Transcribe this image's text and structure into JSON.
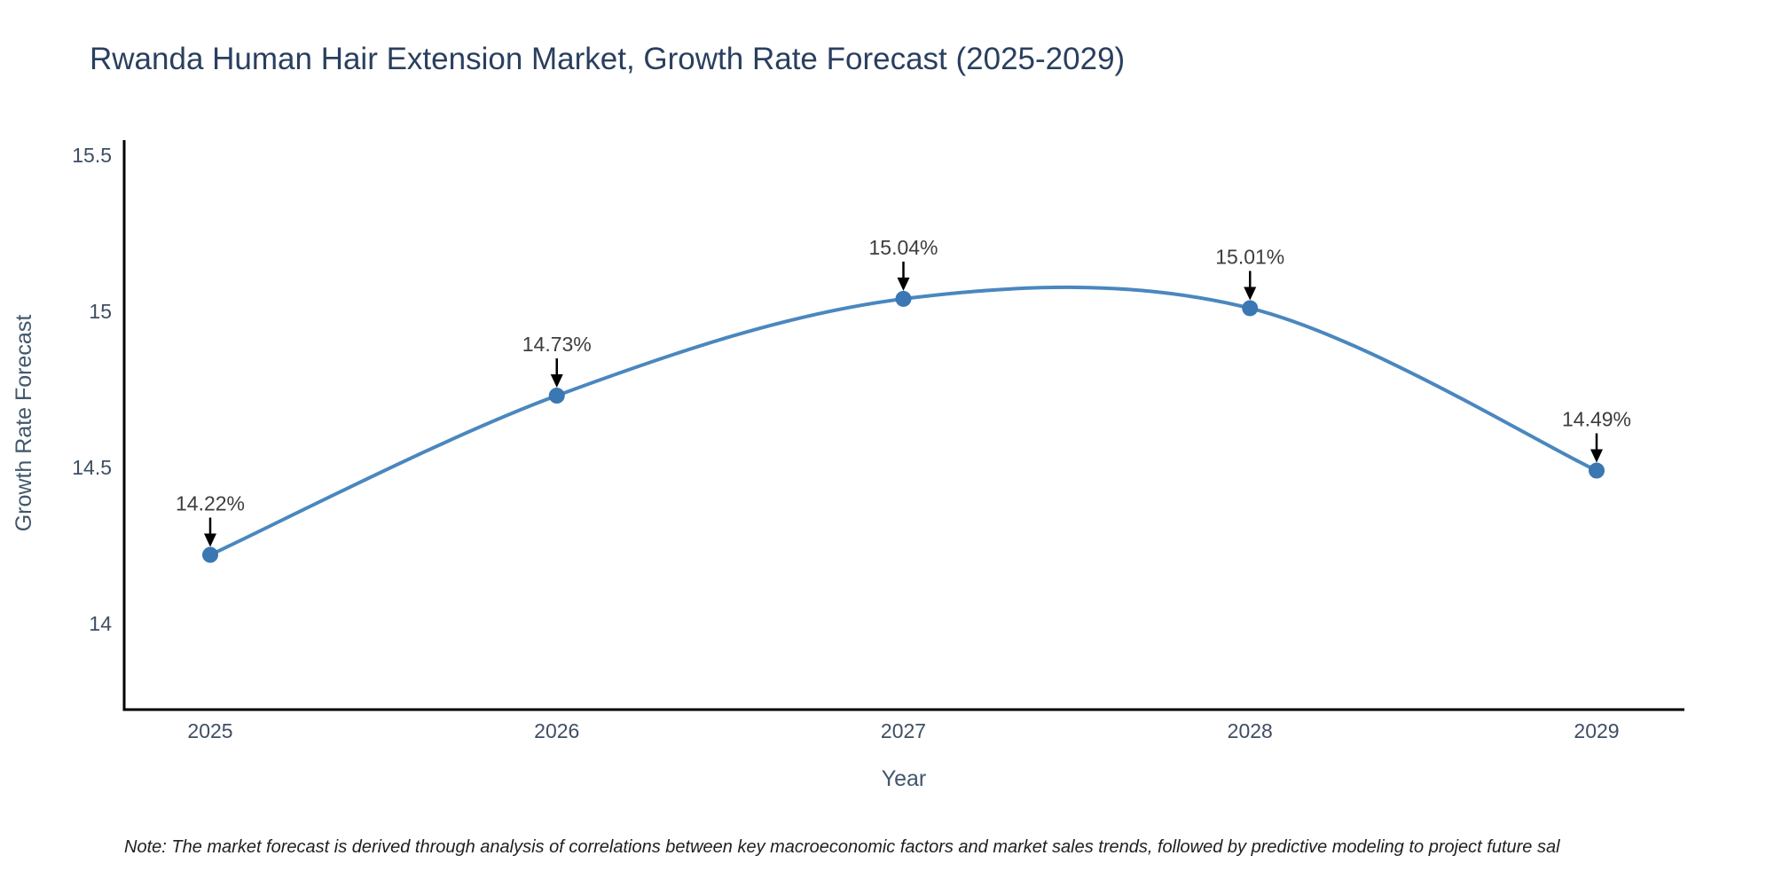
{
  "title": "Rwanda Human Hair Extension Market, Growth Rate Forecast (2025-2029)",
  "note": "Note: The market forecast is derived through analysis of correlations between key macroeconomic factors and market sales trends, followed by predictive modeling to project future sal",
  "chart_data": {
    "type": "line",
    "line_shape": "spline",
    "title": "Rwanda Human Hair Extension Market, Growth Rate Forecast (2025-2029)",
    "xlabel": "Year",
    "ylabel": "Growth Rate Forecast",
    "categories": [
      "2025",
      "2026",
      "2027",
      "2028",
      "2029"
    ],
    "values": [
      14.22,
      14.73,
      15.04,
      15.01,
      14.49
    ],
    "point_labels": [
      "14.22%",
      "14.73%",
      "15.04%",
      "15.01%",
      "14.49%"
    ],
    "ytick_values": [
      15.5,
      15,
      14.5,
      14
    ],
    "ytick_labels": [
      "15.5",
      "15",
      "14.5",
      "14"
    ],
    "ylim": [
      13.72,
      15.55
    ],
    "grid": false,
    "legend": false,
    "annotations_arrows": true,
    "colors": {
      "line": "#4a87be",
      "marker": "#3a77b3",
      "arrow": "#000000",
      "annotation_text": "#3d3d3d",
      "title_text": "#2a3f5f",
      "tick_text": "#3f4e63",
      "axis_label_text": "#42576b",
      "spine": "#000000",
      "background": "#ffffff"
    }
  }
}
